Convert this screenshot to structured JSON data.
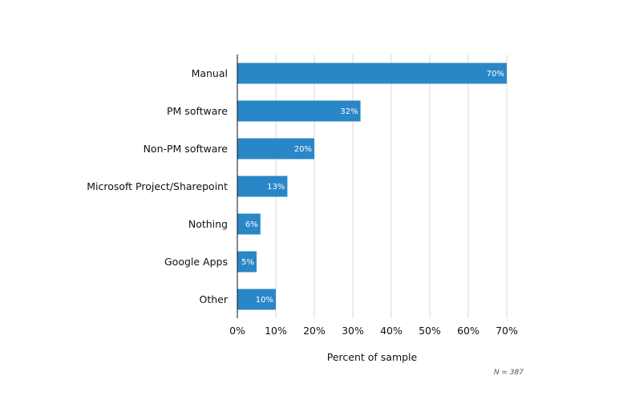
{
  "chart_data": {
    "type": "bar",
    "orientation": "horizontal",
    "categories": [
      "Manual",
      "PM software",
      "Non-PM software",
      "Microsoft Project/Sharepoint",
      "Nothing",
      "Google Apps",
      "Other"
    ],
    "values": [
      70,
      32,
      20,
      13,
      6,
      5,
      10
    ],
    "value_labels": [
      "70%",
      "32%",
      "20%",
      "13%",
      "6%",
      "5%",
      "10%"
    ],
    "xlabel": "Percent of sample",
    "ylabel": "",
    "xlim": [
      0,
      70
    ],
    "x_ticks": [
      0,
      10,
      20,
      30,
      40,
      50,
      60,
      70
    ],
    "x_tick_labels": [
      "0%",
      "10%",
      "20%",
      "30%",
      "40%",
      "50%",
      "60%",
      "70%"
    ],
    "grid": true,
    "bar_color": "#2a87c7",
    "note": "N = 387"
  }
}
